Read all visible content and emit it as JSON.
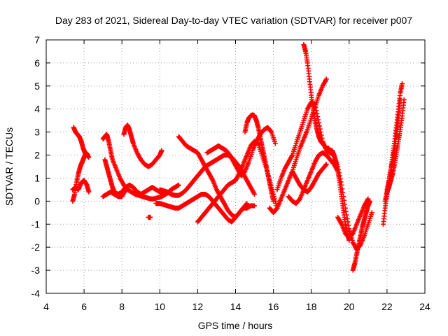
{
  "chart_data": {
    "type": "scatter",
    "title": "Day 283 of 2021, Sidereal Day-to-day VTEC variation (SDTVAR) for receiver p007",
    "xlabel": "GPS time / hours",
    "ylabel": "SDTVAR / TECUs",
    "xlim": [
      4,
      24
    ],
    "ylim": [
      -4,
      7
    ],
    "xticks": [
      4,
      6,
      8,
      10,
      12,
      14,
      16,
      18,
      20,
      22,
      24
    ],
    "yticks": [
      -4,
      -3,
      -2,
      -1,
      0,
      1,
      2,
      3,
      4,
      5,
      6,
      7
    ],
    "grid": true,
    "marker": "+",
    "marker_color": "#ff0000",
    "series": [
      {
        "name": "arc-01",
        "x": [
          5.45,
          5.55,
          5.65,
          5.75,
          5.85,
          5.95,
          6.05,
          6.15,
          6.25
        ],
        "y": [
          3.2,
          3.0,
          2.9,
          2.8,
          2.6,
          2.3,
          2.1,
          2.0,
          1.9
        ]
      },
      {
        "name": "arc-02",
        "x": [
          5.4,
          5.5,
          5.6,
          5.7,
          5.8,
          5.9,
          6.0,
          6.1,
          6.2
        ],
        "y": [
          0.0,
          0.3,
          0.8,
          1.2,
          1.5,
          1.7,
          1.9,
          2.1,
          2.0
        ]
      },
      {
        "name": "arc-03",
        "x": [
          5.4,
          5.55,
          5.7,
          5.85,
          6.0,
          6.15,
          6.25
        ],
        "y": [
          0.5,
          0.6,
          0.5,
          0.8,
          0.9,
          0.7,
          0.4
        ]
      },
      {
        "name": "arc-04",
        "x": [
          7.0,
          7.1,
          7.2,
          7.3,
          7.4,
          7.5,
          7.7,
          7.9,
          8.1,
          8.3,
          8.5,
          8.7,
          8.9,
          9.1,
          9.3,
          9.5,
          9.7,
          9.9,
          10.1,
          10.3,
          10.5
        ],
        "y": [
          2.7,
          2.8,
          2.9,
          2.6,
          2.2,
          1.8,
          1.4,
          1.0,
          0.7,
          0.5,
          0.4,
          0.3,
          0.25,
          0.2,
          0.15,
          0.1,
          0.1,
          0.15,
          0.2,
          0.3,
          0.4
        ]
      },
      {
        "name": "arc-05",
        "x": [
          7.0,
          7.2,
          7.4,
          7.6,
          7.8,
          8.0,
          8.2,
          8.4,
          8.6,
          8.8,
          9.0,
          9.2,
          9.4,
          9.6,
          9.8,
          10.0,
          10.2,
          10.4,
          10.6,
          10.8,
          11.0
        ],
        "y": [
          0.2,
          0.3,
          0.4,
          0.3,
          0.2,
          0.2,
          0.5,
          0.7,
          0.6,
          0.4,
          0.3,
          0.4,
          0.5,
          0.6,
          0.5,
          0.4,
          0.3,
          0.35,
          0.5,
          0.6,
          0.7
        ]
      },
      {
        "name": "arc-06",
        "x": [
          7.1,
          7.2,
          7.3,
          7.4,
          7.5,
          7.6,
          7.8,
          8.0,
          8.2,
          8.4
        ],
        "y": [
          1.8,
          1.5,
          1.2,
          0.9,
          0.6,
          0.4,
          0.3,
          0.4,
          0.6,
          0.7
        ]
      },
      {
        "name": "arc-07",
        "x": [
          8.1,
          8.2,
          8.3,
          8.4,
          8.5,
          8.6,
          8.8,
          9.0,
          9.2,
          9.4,
          9.6,
          9.8,
          10.0,
          10.1
        ],
        "y": [
          2.9,
          3.2,
          3.3,
          3.1,
          2.8,
          2.5,
          2.1,
          1.8,
          1.6,
          1.5,
          1.6,
          1.8,
          2.0,
          2.2
        ]
      },
      {
        "name": "arc-08",
        "x": [
          9.4,
          9.5
        ],
        "y": [
          -0.7,
          -0.7
        ]
      },
      {
        "name": "arc-09",
        "x": [
          10.0,
          10.2,
          10.4,
          10.6,
          10.8,
          11.0,
          11.2,
          11.4,
          11.6,
          11.8,
          12.0,
          12.2,
          12.4,
          12.6,
          12.8,
          13.0,
          13.2,
          13.4,
          13.6,
          13.8,
          14.0,
          14.2,
          14.4,
          14.6,
          14.8,
          15.0
        ],
        "y": [
          0.5,
          0.45,
          0.4,
          0.3,
          0.25,
          0.25,
          0.35,
          0.5,
          0.7,
          0.9,
          1.1,
          1.3,
          1.5,
          1.6,
          1.7,
          1.8,
          1.9,
          2.0,
          2.0,
          1.9,
          1.7,
          1.5,
          1.2,
          0.9,
          0.6,
          0.3
        ]
      },
      {
        "name": "arc-10",
        "x": [
          9.8,
          10.0,
          10.2,
          10.4,
          10.6,
          10.8,
          11.0,
          11.2,
          11.4,
          11.6,
          11.8,
          12.0,
          12.2,
          12.4,
          12.6,
          12.8,
          13.0,
          13.2,
          13.4,
          13.6,
          13.8,
          14.0,
          14.2,
          14.4,
          14.6,
          14.8,
          15.0
        ],
        "y": [
          -0.1,
          -0.1,
          -0.15,
          -0.2,
          -0.25,
          -0.3,
          -0.3,
          -0.2,
          -0.1,
          0.0,
          0.1,
          0.2,
          0.3,
          0.3,
          0.2,
          0.0,
          -0.2,
          -0.4,
          -0.6,
          -0.8,
          -0.9,
          -0.7,
          -0.5,
          -0.3,
          -0.3,
          -0.2,
          -0.2
        ]
      },
      {
        "name": "arc-11",
        "x": [
          11.0,
          11.2,
          11.4,
          11.6,
          11.8,
          12.0,
          12.2,
          12.4,
          12.6,
          12.8,
          13.0,
          13.2,
          13.4,
          13.6,
          13.8,
          14.0,
          14.2,
          14.4,
          14.6
        ],
        "y": [
          2.8,
          2.6,
          2.4,
          2.3,
          2.2,
          2.1,
          1.8,
          1.5,
          1.2,
          0.9,
          0.5,
          0.2,
          -0.1,
          -0.4,
          -0.6,
          -0.7,
          -0.5,
          -0.3,
          -0.1
        ]
      },
      {
        "name": "arc-12",
        "x": [
          12.0,
          12.2,
          12.4,
          12.6,
          12.8,
          13.0,
          13.2,
          13.4,
          13.6,
          13.8,
          14.0,
          14.2,
          14.4,
          14.6,
          14.8,
          15.0,
          15.2,
          15.4,
          15.6,
          15.8,
          16.0,
          16.2
        ],
        "y": [
          -0.9,
          -0.7,
          -0.5,
          -0.3,
          -0.1,
          0.1,
          0.3,
          0.5,
          0.7,
          0.8,
          0.9,
          1.2,
          1.6,
          2.0,
          2.4,
          2.6,
          2.5,
          2.0,
          1.5,
          0.9,
          0.3,
          -0.3
        ]
      },
      {
        "name": "arc-13",
        "x": [
          12.5,
          12.7,
          12.9,
          13.1,
          13.3,
          13.5,
          13.7,
          13.9,
          14.1,
          14.3,
          14.5,
          14.7,
          14.9,
          15.1,
          15.3,
          15.5,
          15.7,
          15.9,
          16.1
        ],
        "y": [
          2.1,
          2.2,
          2.3,
          2.4,
          2.3,
          2.2,
          2.0,
          1.7,
          1.4,
          1.1,
          1.3,
          1.7,
          2.2,
          2.6,
          2.9,
          3.1,
          3.2,
          3.0,
          2.5
        ]
      },
      {
        "name": "arc-14",
        "x": [
          14.5,
          14.6,
          14.7,
          14.8,
          14.9,
          15.0,
          15.1,
          15.2,
          15.3,
          15.4,
          15.5,
          15.6,
          15.7,
          15.8,
          15.9,
          16.0
        ],
        "y": [
          3.0,
          3.4,
          3.6,
          3.7,
          3.75,
          3.7,
          3.5,
          3.2,
          2.8,
          2.4,
          2.0,
          1.6,
          1.2,
          0.8,
          0.4,
          0.0
        ]
      },
      {
        "name": "arc-15",
        "x": [
          15.8,
          16.0,
          16.2,
          16.4,
          16.6,
          16.8,
          17.0,
          17.2,
          17.4,
          17.6,
          17.8,
          18.0,
          18.2,
          18.4,
          18.6,
          18.8
        ],
        "y": [
          -0.3,
          -0.5,
          -0.3,
          0.1,
          0.5,
          0.9,
          1.3,
          1.0,
          0.7,
          0.5,
          0.4,
          0.6,
          0.9,
          1.2,
          1.4,
          1.6
        ]
      },
      {
        "name": "arc-16",
        "x": [
          16.2,
          16.4,
          16.6,
          16.8,
          17.0,
          17.2,
          17.4,
          17.6,
          17.8,
          18.0,
          18.2,
          18.4,
          18.6,
          18.8,
          19.0,
          19.2,
          19.4,
          19.6,
          19.8,
          20.0,
          20.2,
          20.4,
          20.6,
          20.8,
          21.0,
          21.2
        ],
        "y": [
          0.5,
          1.0,
          1.4,
          1.7,
          2.0,
          2.5,
          3.0,
          3.5,
          4.0,
          4.3,
          4.2,
          3.4,
          2.6,
          2.2,
          2.1,
          2.0,
          1.5,
          0.7,
          -0.3,
          -1.2,
          -1.8,
          -2.1,
          -1.9,
          -1.5,
          -1.0,
          -0.5
        ]
      },
      {
        "name": "arc-17",
        "x": [
          17.6,
          17.7,
          17.8,
          17.9,
          18.0,
          18.1,
          18.2,
          18.3,
          18.4,
          18.5,
          18.6,
          18.7,
          18.8,
          18.9,
          19.0,
          19.1,
          19.2,
          19.3,
          19.4,
          19.5,
          19.6,
          19.7,
          19.8,
          19.9,
          20.0
        ],
        "y": [
          6.8,
          6.5,
          6.0,
          5.3,
          4.6,
          4.0,
          3.5,
          3.1,
          2.8,
          2.6,
          2.5,
          2.4,
          2.3,
          2.3,
          2.2,
          2.2,
          2.0,
          1.7,
          1.3,
          0.8,
          0.2,
          -0.4,
          -1.0,
          -1.4,
          -1.7
        ]
      },
      {
        "name": "arc-18",
        "x": [
          17.0,
          17.2,
          17.4,
          17.6,
          17.8,
          18.0,
          18.2,
          18.4,
          18.6,
          18.8
        ],
        "y": [
          1.3,
          1.8,
          2.3,
          2.7,
          3.1,
          3.6,
          4.1,
          4.6,
          5.0,
          5.3
        ]
      },
      {
        "name": "arc-19",
        "x": [
          16.8,
          17.0,
          17.2,
          17.4,
          17.6,
          17.8,
          18.0,
          18.2,
          18.4,
          18.6,
          18.8,
          19.0,
          19.2,
          19.4
        ],
        "y": [
          0.2,
          0.0,
          -0.1,
          0.1,
          0.5,
          0.9,
          1.3,
          1.7,
          2.0,
          2.1,
          2.0,
          1.8,
          1.6,
          1.3
        ]
      },
      {
        "name": "arc-20",
        "x": [
          19.4,
          19.6,
          19.8,
          20.0,
          20.2,
          20.4,
          20.6,
          20.8,
          21.0
        ],
        "y": [
          -0.7,
          -1.0,
          -1.4,
          -1.6,
          -1.4,
          -1.0,
          -0.6,
          -0.2,
          0.1
        ]
      },
      {
        "name": "arc-21",
        "x": [
          20.2,
          20.3,
          20.4,
          20.5,
          20.6,
          20.7,
          20.8,
          20.9,
          21.0,
          21.1
        ],
        "y": [
          -3.0,
          -2.7,
          -2.3,
          -1.9,
          -1.5,
          -1.1,
          -0.8,
          -0.5,
          -0.2,
          0.0
        ]
      },
      {
        "name": "arc-22",
        "x": [
          21.8,
          21.9,
          22.0,
          22.1,
          22.2,
          22.3,
          22.4,
          22.5,
          22.6,
          22.7
        ],
        "y": [
          -1.0,
          -0.3,
          0.3,
          0.8,
          1.3,
          1.8,
          2.3,
          2.9,
          3.6,
          4.4
        ]
      },
      {
        "name": "arc-23",
        "x": [
          22.0,
          22.1,
          22.2,
          22.3,
          22.4,
          22.5,
          22.6,
          22.7,
          22.8
        ],
        "y": [
          0.5,
          0.9,
          1.4,
          2.0,
          2.6,
          3.3,
          4.0,
          4.7,
          5.1
        ]
      },
      {
        "name": "arc-24",
        "x": [
          21.9,
          22.0,
          22.1,
          22.2,
          22.3,
          22.4,
          22.5,
          22.6,
          22.7,
          22.8,
          22.9
        ],
        "y": [
          0.0,
          0.4,
          0.6,
          0.9,
          1.2,
          1.6,
          2.1,
          2.6,
          3.1,
          3.7,
          4.4
        ]
      }
    ]
  }
}
